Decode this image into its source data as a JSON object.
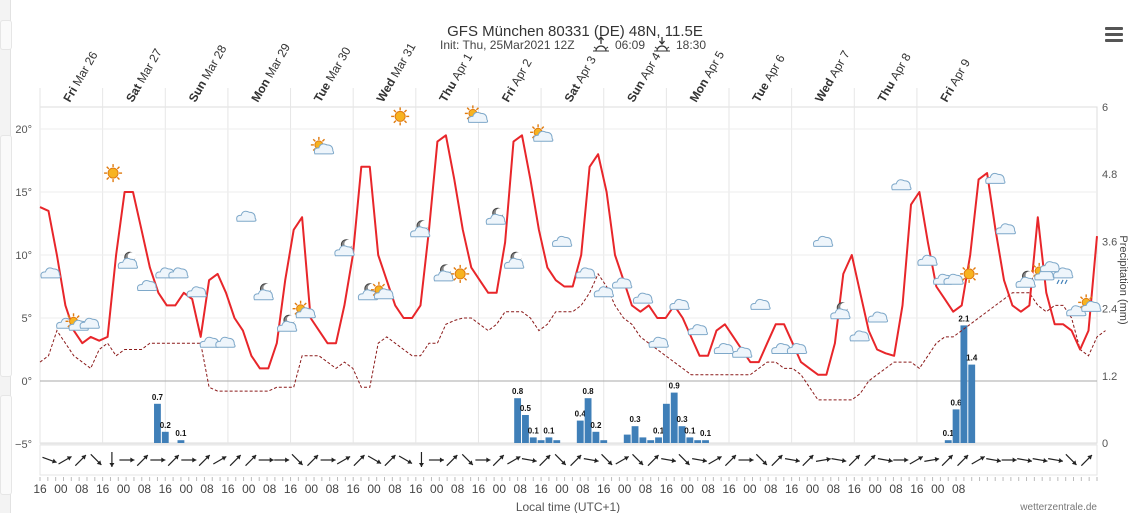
{
  "header": {
    "title": "GFS München 80331 (DE) 48N, 11.5E",
    "init": "Init: Thu, 25Mar2021 12Z",
    "sunrise": "06:09",
    "sunset": "18:30"
  },
  "footer": {
    "xlabel": "Local time (UTC+1)",
    "credit": "wetterzentrale.de"
  },
  "colors": {
    "temp": "#e8262a",
    "dew": "#8b1a1a",
    "precip": "#3f7fb8",
    "precip_neg": "#6b9bd0",
    "grid": "#e6e6e6"
  },
  "chart_data": {
    "type": "line",
    "title": "GFS München 80331 (DE) 48N, 11.5E",
    "subtitle": "Init: Thu, 25Mar2021 12Z",
    "xlabel": "Local time (UTC+1)",
    "ylabel_right": "Precipitation (mm)",
    "x_start": "Thu Mar 25 16:00",
    "x_step_hours": 3,
    "ylim": [
      -5.5,
      20.5
    ],
    "yticks": [
      "20°",
      "15°",
      "10°",
      "5°",
      "0°",
      "−5°"
    ],
    "yticks_values": [
      20,
      15,
      10,
      5,
      0,
      -5
    ],
    "y2lim": [
      0,
      6
    ],
    "y2ticks": [
      "6",
      "4.8",
      "3.6",
      "2.4",
      "1.2",
      "0"
    ],
    "day_labels": [
      {
        "dow": "Fri",
        "date": "Mar 26",
        "hour": 13
      },
      {
        "dow": "Sat",
        "date": "Mar 27",
        "hour": 37
      },
      {
        "dow": "Sun",
        "date": "Mar 28",
        "hour": 61
      },
      {
        "dow": "Mon",
        "date": "Mar 29",
        "hour": 85
      },
      {
        "dow": "Tue",
        "date": "Mar 30",
        "hour": 109
      },
      {
        "dow": "Wed",
        "date": "Mar 31",
        "hour": 133
      },
      {
        "dow": "Thu",
        "date": "Apr 1",
        "hour": 157
      },
      {
        "dow": "Fri",
        "date": "Apr 2",
        "hour": 181
      },
      {
        "dow": "Sat",
        "date": "Apr 3",
        "hour": 205
      },
      {
        "dow": "Sun",
        "date": "Apr 4",
        "hour": 229
      },
      {
        "dow": "Mon",
        "date": "Apr 5",
        "hour": 253
      },
      {
        "dow": "Tue",
        "date": "Apr 6",
        "hour": 277
      },
      {
        "dow": "Wed",
        "date": "Apr 7",
        "hour": 301
      },
      {
        "dow": "Thu",
        "date": "Apr 8",
        "hour": 325
      },
      {
        "dow": "Fri",
        "date": "Apr 9",
        "hour": 349
      }
    ],
    "hour_labels": [
      "16",
      "00",
      "08",
      "16",
      "00",
      "08",
      "16",
      "00",
      "08",
      "16",
      "00",
      "08",
      "16",
      "00",
      "08",
      "16",
      "00",
      "08",
      "16",
      "00",
      "08",
      "16",
      "00",
      "08",
      "16",
      "00",
      "08",
      "16",
      "00",
      "08",
      "16",
      "00",
      "08",
      "16",
      "00",
      "08",
      "16",
      "00",
      "08",
      "16",
      "00",
      "08",
      "16",
      "00",
      "08"
    ],
    "series": [
      {
        "name": "Temperature",
        "values": [
          13.8,
          13.5,
          10,
          6,
          4,
          3,
          3.5,
          3.2,
          3.5,
          10,
          15,
          15,
          12,
          9,
          7,
          6,
          6,
          7,
          6.5,
          3.5,
          8,
          8.5,
          7,
          5,
          4,
          2,
          1,
          1,
          3,
          8,
          12,
          13,
          5,
          4,
          3,
          3,
          6,
          10,
          17,
          17,
          10,
          8,
          6,
          5,
          5,
          6,
          12,
          19,
          19.5,
          16,
          12,
          9,
          8,
          7,
          7,
          11,
          19,
          19.5,
          16,
          12,
          9,
          8,
          7.5,
          7.5,
          10,
          17,
          18,
          15,
          10,
          8,
          6,
          5.5,
          6,
          5,
          5,
          6,
          5,
          3.5,
          2,
          2,
          4,
          4.5,
          3.5,
          2.5,
          1.5,
          1.5,
          3,
          4.5,
          4.5,
          3,
          1.5,
          1,
          0.5,
          0.5,
          3,
          8.5,
          10,
          7,
          4,
          2.5,
          2.2,
          2,
          6,
          14,
          15,
          11,
          7.5,
          6.5,
          5.5,
          6,
          10,
          16,
          16.5,
          12,
          8,
          6,
          5.5,
          6,
          13,
          7,
          4.5,
          4.5,
          4,
          2.5,
          4,
          11.5
        ]
      },
      {
        "name": "Dew point",
        "values": [
          1.5,
          2,
          4,
          3,
          2,
          1.5,
          1,
          2.5,
          3,
          2,
          2.5,
          2.5,
          2.5,
          3,
          3,
          3,
          3,
          3,
          3,
          3,
          -0.5,
          -0.8,
          -0.8,
          -0.8,
          -0.8,
          -0.8,
          -0.8,
          -0.8,
          -0.5,
          -0.5,
          -0.5,
          2,
          2,
          2,
          1.5,
          1,
          1.5,
          1,
          -0.5,
          -0.5,
          3,
          3.5,
          3,
          2.5,
          2,
          2,
          3,
          3,
          4.5,
          4.8,
          5,
          5,
          4.5,
          4,
          4.5,
          5.5,
          5.5,
          5.5,
          5,
          4,
          4.5,
          5.5,
          5.5,
          5.5,
          6,
          7,
          8.5,
          7.5,
          6,
          5,
          4.5,
          3.5,
          3,
          2.5,
          2,
          1.5,
          1,
          0.5,
          0.5,
          0.5,
          0.5,
          0.5,
          0.5,
          0.5,
          0.5,
          1,
          1.5,
          1.5,
          1,
          1,
          0.5,
          -0.5,
          -1.5,
          -1.5,
          -1.5,
          -1.5,
          -1.5,
          -1,
          0,
          0.5,
          1,
          1.5,
          1.5,
          1.5,
          1,
          2,
          3,
          3.5,
          3.5,
          4,
          4.5,
          5,
          5.5,
          6,
          6.5,
          7,
          7,
          7,
          6,
          5.5,
          6,
          6,
          5,
          2.5,
          2,
          3.5,
          4
        ]
      },
      {
        "name": "Precipitation",
        "bars": [
          {
            "hour": 45,
            "value": 0.7,
            "label": "0.7"
          },
          {
            "hour": 48,
            "value": 0.2,
            "label": "0.2"
          },
          {
            "hour": 54,
            "value": 0.05,
            "label": "0.1"
          },
          {
            "hour": 183,
            "value": 0.8,
            "label": "0.8"
          },
          {
            "hour": 186,
            "value": 0.5,
            "label": "0.5"
          },
          {
            "hour": 189,
            "value": 0.1,
            "label": "0.1"
          },
          {
            "hour": 192,
            "value": 0.05,
            "label": ""
          },
          {
            "hour": 195,
            "value": 0.1,
            "label": "0.1"
          },
          {
            "hour": 198,
            "value": 0.05,
            "label": ""
          },
          {
            "hour": 207,
            "value": 0.4,
            "label": "0.4"
          },
          {
            "hour": 210,
            "value": 0.8,
            "label": "0.8"
          },
          {
            "hour": 213,
            "value": 0.2,
            "label": "0.2"
          },
          {
            "hour": 216,
            "value": 0.05,
            "label": ""
          },
          {
            "hour": 225,
            "value": 0.15,
            "label": ""
          },
          {
            "hour": 228,
            "value": 0.3,
            "label": "0.3"
          },
          {
            "hour": 231,
            "value": 0.1,
            "label": ""
          },
          {
            "hour": 234,
            "value": 0.05,
            "label": ""
          },
          {
            "hour": 237,
            "value": 0.1,
            "label": "0.1"
          },
          {
            "hour": 240,
            "value": 0.7,
            "label": ""
          },
          {
            "hour": 243,
            "value": 0.9,
            "label": "0.9"
          },
          {
            "hour": 246,
            "value": 0.3,
            "label": "0.3"
          },
          {
            "hour": 249,
            "value": 0.1,
            "label": "0.1"
          },
          {
            "hour": 252,
            "value": 0.05,
            "label": ""
          },
          {
            "hour": 255,
            "value": 0.05,
            "label": "0.1"
          },
          {
            "hour": 348,
            "value": 0.05,
            "label": "0.1"
          },
          {
            "hour": 351,
            "value": 0.6,
            "label": "0.6"
          },
          {
            "hour": 354,
            "value": 2.1,
            "label": "2.1"
          },
          {
            "hour": 357,
            "value": 1.4,
            "label": "1.4"
          }
        ]
      }
    ],
    "weather_icons": [
      {
        "hour": 4,
        "temp": 8.5,
        "icon": "cloud"
      },
      {
        "hour": 10,
        "temp": 4.5,
        "icon": "cloud"
      },
      {
        "hour": 14,
        "temp": 4.5,
        "icon": "sun-cloud"
      },
      {
        "hour": 19,
        "temp": 4.5,
        "icon": "cloud"
      },
      {
        "hour": 28,
        "temp": 16.5,
        "icon": "sun"
      },
      {
        "hour": 34,
        "temp": 9.5,
        "icon": "moon-cloud"
      },
      {
        "hour": 41,
        "temp": 7.5,
        "icon": "cloud"
      },
      {
        "hour": 48,
        "temp": 8.5,
        "icon": "cloud"
      },
      {
        "hour": 53,
        "temp": 8.5,
        "icon": "cloud"
      },
      {
        "hour": 60,
        "temp": 7,
        "icon": "cloud"
      },
      {
        "hour": 65,
        "temp": 3,
        "icon": "cloud"
      },
      {
        "hour": 71,
        "temp": 3,
        "icon": "cloud"
      },
      {
        "hour": 79,
        "temp": 13,
        "icon": "cloud"
      },
      {
        "hour": 86,
        "temp": 7,
        "icon": "moon-cloud"
      },
      {
        "hour": 95,
        "temp": 4.5,
        "icon": "moon-cloud"
      },
      {
        "hour": 101,
        "temp": 5.5,
        "icon": "sun-cloud"
      },
      {
        "hour": 108,
        "temp": 18.5,
        "icon": "sun-cloud"
      },
      {
        "hour": 117,
        "temp": 10.5,
        "icon": "moon-cloud"
      },
      {
        "hour": 126,
        "temp": 7,
        "icon": "moon-cloud"
      },
      {
        "hour": 131,
        "temp": 7,
        "icon": "sun-cloud"
      },
      {
        "hour": 138,
        "temp": 21,
        "icon": "sun"
      },
      {
        "hour": 146,
        "temp": 12,
        "icon": "moon-cloud"
      },
      {
        "hour": 155,
        "temp": 8.5,
        "icon": "moon-cloud"
      },
      {
        "hour": 161,
        "temp": 8.5,
        "icon": "sun"
      },
      {
        "hour": 167,
        "temp": 21,
        "icon": "sun-cloud"
      },
      {
        "hour": 175,
        "temp": 13,
        "icon": "moon-cloud"
      },
      {
        "hour": 182,
        "temp": 9.5,
        "icon": "moon-cloud"
      },
      {
        "hour": 192,
        "temp": 19.5,
        "icon": "sun-cloud"
      },
      {
        "hour": 200,
        "temp": 11,
        "icon": "cloud"
      },
      {
        "hour": 209,
        "temp": 8.5,
        "icon": "cloud"
      },
      {
        "hour": 216,
        "temp": 7,
        "icon": "cloud"
      },
      {
        "hour": 223,
        "temp": 7.7,
        "icon": "cloud"
      },
      {
        "hour": 231,
        "temp": 6.5,
        "icon": "cloud"
      },
      {
        "hour": 237,
        "temp": 3,
        "icon": "cloud"
      },
      {
        "hour": 245,
        "temp": 6,
        "icon": "cloud"
      },
      {
        "hour": 252,
        "temp": 4,
        "icon": "cloud"
      },
      {
        "hour": 262,
        "temp": 2.5,
        "icon": "cloud"
      },
      {
        "hour": 269,
        "temp": 2.2,
        "icon": "cloud"
      },
      {
        "hour": 276,
        "temp": 6,
        "icon": "cloud"
      },
      {
        "hour": 284,
        "temp": 2.5,
        "icon": "cloud"
      },
      {
        "hour": 290,
        "temp": 2.5,
        "icon": "cloud"
      },
      {
        "hour": 300,
        "temp": 11,
        "icon": "cloud"
      },
      {
        "hour": 307,
        "temp": 5.5,
        "icon": "moon-cloud"
      },
      {
        "hour": 314,
        "temp": 3.5,
        "icon": "cloud"
      },
      {
        "hour": 321,
        "temp": 5,
        "icon": "cloud"
      },
      {
        "hour": 330,
        "temp": 15.5,
        "icon": "cloud"
      },
      {
        "hour": 340,
        "temp": 9.5,
        "icon": "cloud"
      },
      {
        "hour": 346,
        "temp": 8,
        "icon": "cloud"
      },
      {
        "hour": 350,
        "temp": 8,
        "icon": "cloud"
      },
      {
        "hour": 356,
        "temp": 8.5,
        "icon": "sun"
      },
      {
        "hour": 366,
        "temp": 16,
        "icon": "cloud"
      },
      {
        "hour": 370,
        "temp": 12,
        "icon": "cloud"
      },
      {
        "hour": 378,
        "temp": 8,
        "icon": "moon-cloud"
      },
      {
        "hour": 384,
        "temp": 8.5,
        "icon": "sun-cloud"
      },
      {
        "hour": 387,
        "temp": 9,
        "icon": "cloud"
      },
      {
        "hour": 392,
        "temp": 8.5,
        "icon": "rain-cloud"
      },
      {
        "hour": 397,
        "temp": 5.5,
        "icon": "cloud"
      },
      {
        "hour": 402,
        "temp": 6,
        "icon": "sun-cloud"
      }
    ],
    "wind_arrows_deg": [
      110,
      60,
      45,
      135,
      180,
      90,
      45,
      90,
      45,
      90,
      45,
      60,
      45,
      45,
      90,
      90,
      135,
      45,
      90,
      60,
      45,
      120,
      45,
      120,
      180,
      90,
      45,
      135,
      90,
      45,
      60,
      100,
      45,
      135,
      45,
      100,
      135,
      60,
      135,
      45,
      100,
      135,
      100,
      60,
      45,
      90,
      135,
      45,
      100,
      45,
      80,
      100,
      45,
      45,
      100,
      90,
      60,
      80,
      45,
      45,
      60,
      100,
      90,
      100,
      100,
      100,
      135,
      45
    ]
  }
}
